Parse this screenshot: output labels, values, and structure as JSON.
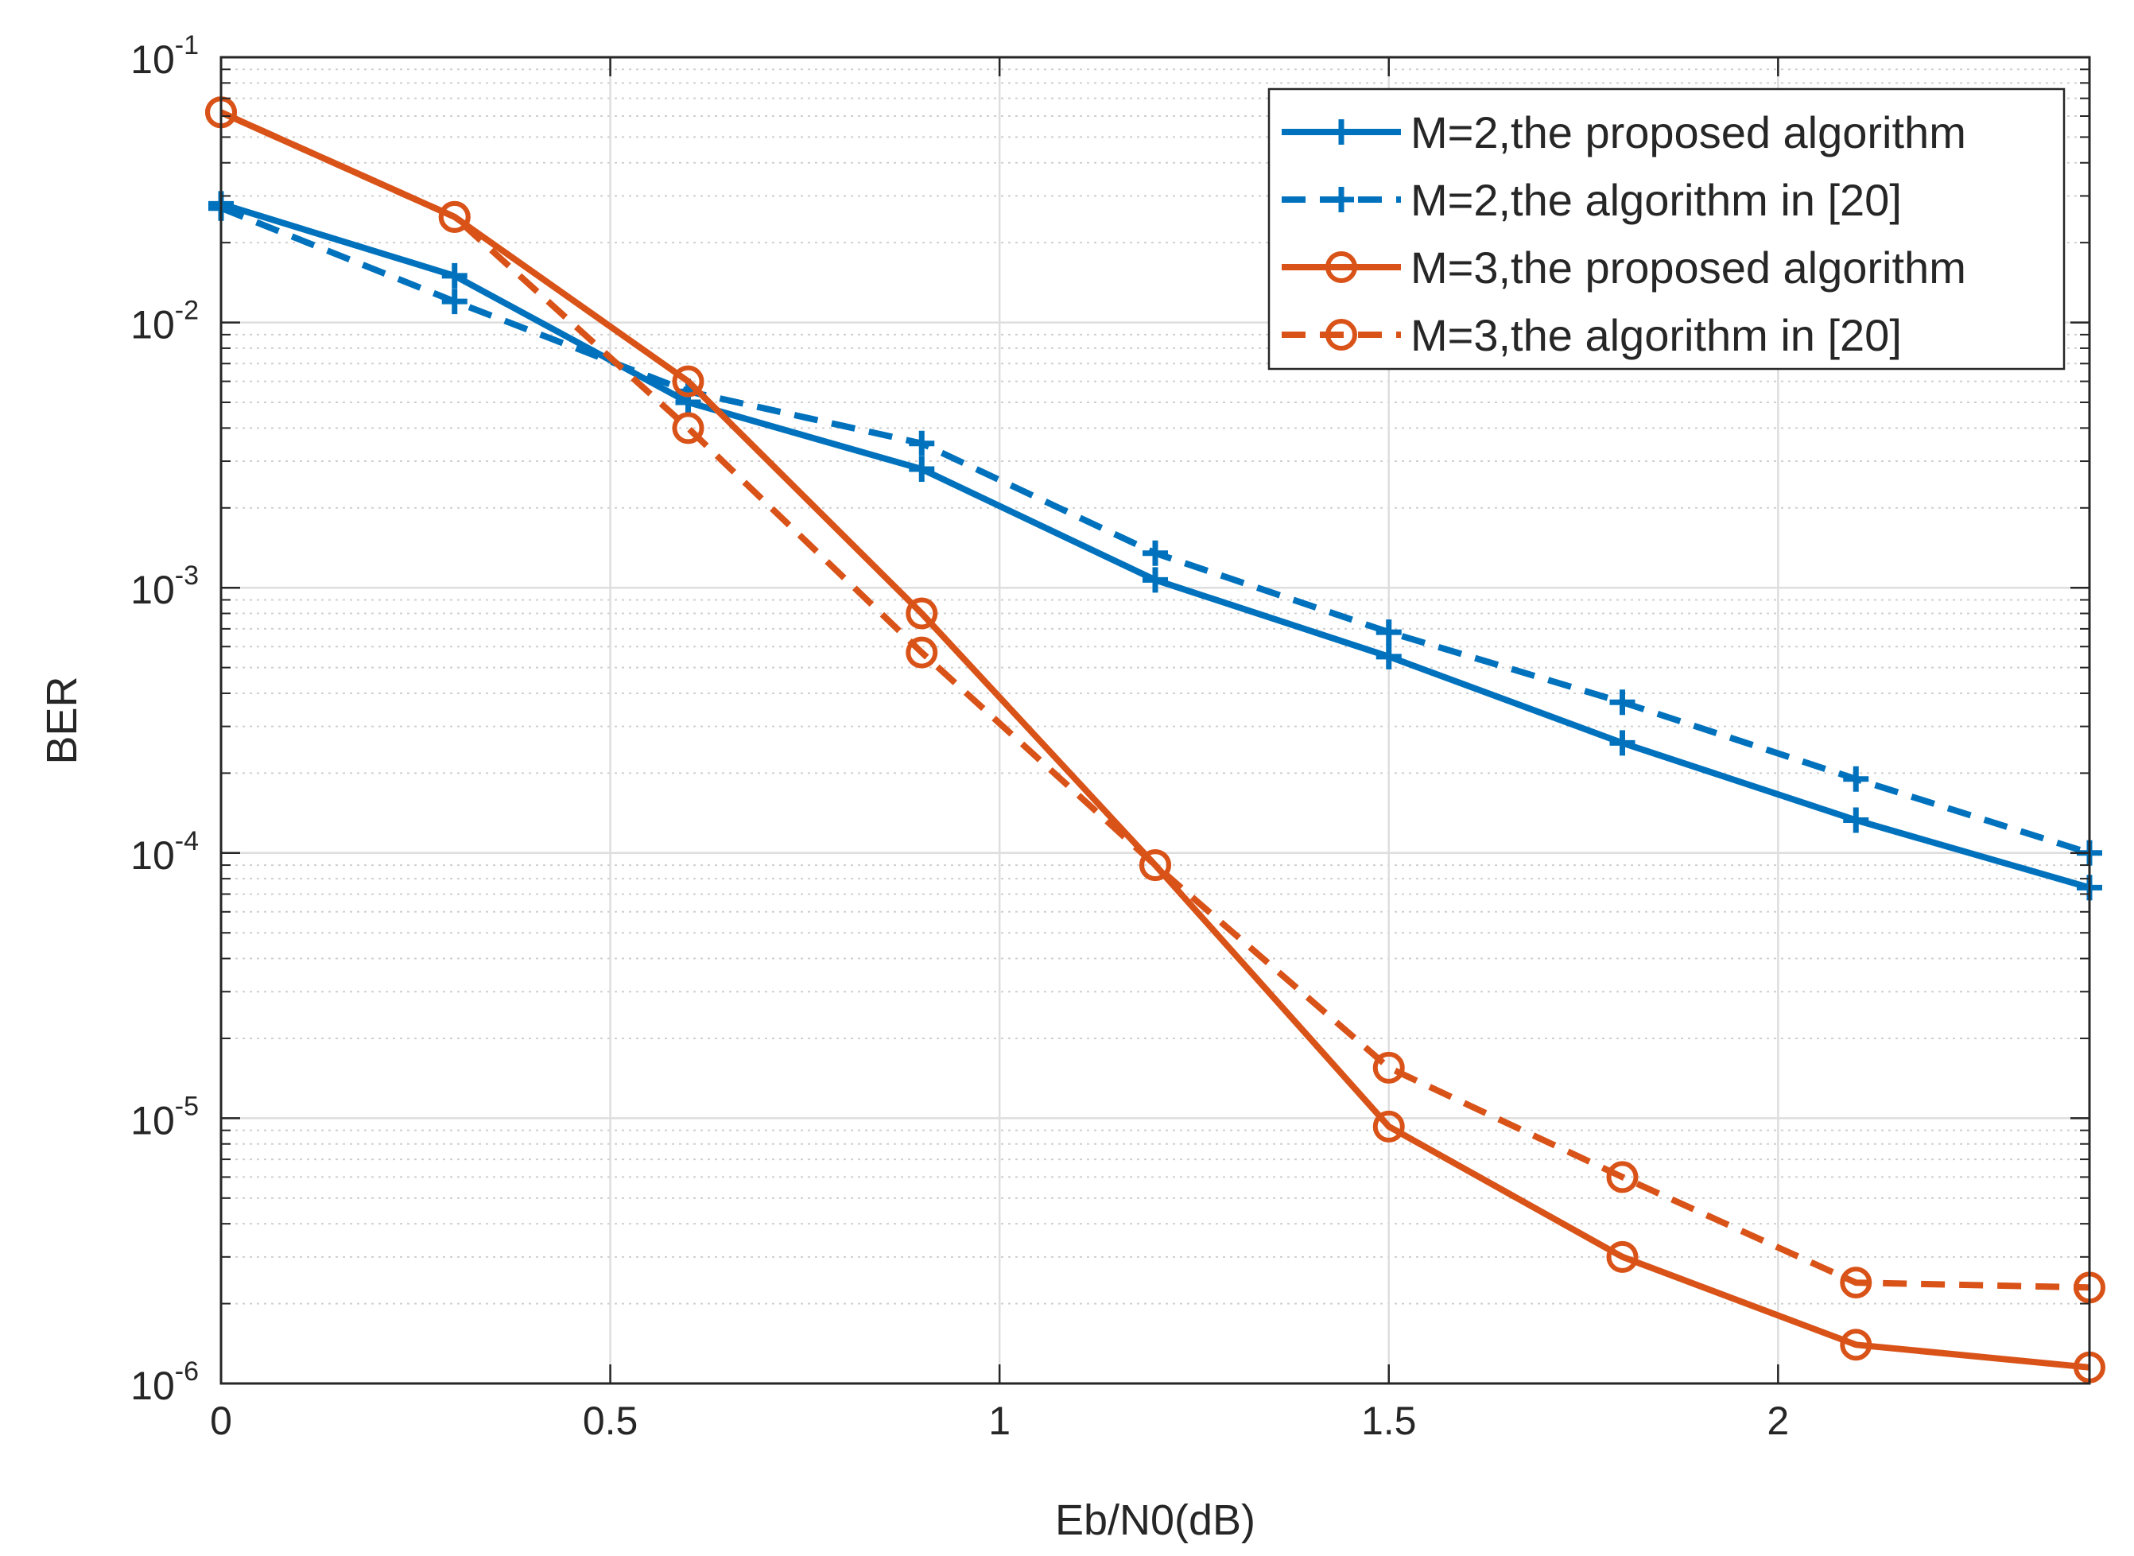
{
  "chart_data": {
    "type": "line",
    "title": "",
    "xlabel": "Eb/N0(dB)",
    "ylabel": "BER",
    "yscale": "log",
    "xlim": [
      0,
      2.4
    ],
    "ylim": [
      1e-06,
      0.1
    ],
    "grid": true,
    "minor_grid": true,
    "legend_position": "top-right",
    "x_ticks": [
      {
        "value": 0,
        "label": "0"
      },
      {
        "value": 0.5,
        "label": "0.5"
      },
      {
        "value": 1,
        "label": "1"
      },
      {
        "value": 1.5,
        "label": "1.5"
      },
      {
        "value": 2,
        "label": "2"
      }
    ],
    "y_ticks": [
      {
        "value": 0.1,
        "base": "10",
        "exp": "-1"
      },
      {
        "value": 0.01,
        "base": "10",
        "exp": "-2"
      },
      {
        "value": 0.001,
        "base": "10",
        "exp": "-3"
      },
      {
        "value": 0.0001,
        "base": "10",
        "exp": "-4"
      },
      {
        "value": 1e-05,
        "base": "10",
        "exp": "-5"
      },
      {
        "value": 1e-06,
        "base": "10",
        "exp": "-6"
      }
    ],
    "x": [
      0,
      0.3,
      0.6,
      0.9,
      1.2,
      1.5,
      1.8,
      2.1,
      2.4
    ],
    "series": [
      {
        "name": "M=2,the proposed algorithm",
        "color": "#0072BD",
        "style": "solid",
        "marker": "plus",
        "values": [
          0.028,
          0.015,
          0.005,
          0.0028,
          0.00107,
          0.00055,
          0.00026,
          0.000133,
          7.4e-05
        ]
      },
      {
        "name": "M=2,the algorithm in [20]",
        "color": "#0072BD",
        "style": "dashed",
        "marker": "plus",
        "values": [
          0.027,
          0.012,
          0.0055,
          0.0035,
          0.00135,
          0.00068,
          0.00037,
          0.00019,
          0.0001
        ]
      },
      {
        "name": "M=3,the proposed algorithm",
        "color": "#D95319",
        "style": "solid",
        "marker": "circle",
        "values": [
          0.062,
          0.025,
          0.006,
          0.0008,
          9e-05,
          9.3e-06,
          3e-06,
          1.4e-06,
          1.15e-06
        ]
      },
      {
        "name": "M=3,the algorithm in [20]",
        "color": "#D95319",
        "style": "dashed",
        "marker": "circle",
        "values": [
          0.062,
          0.025,
          0.004,
          0.00057,
          9e-05,
          1.55e-05,
          6e-06,
          2.4e-06,
          2.3e-06
        ]
      }
    ]
  }
}
